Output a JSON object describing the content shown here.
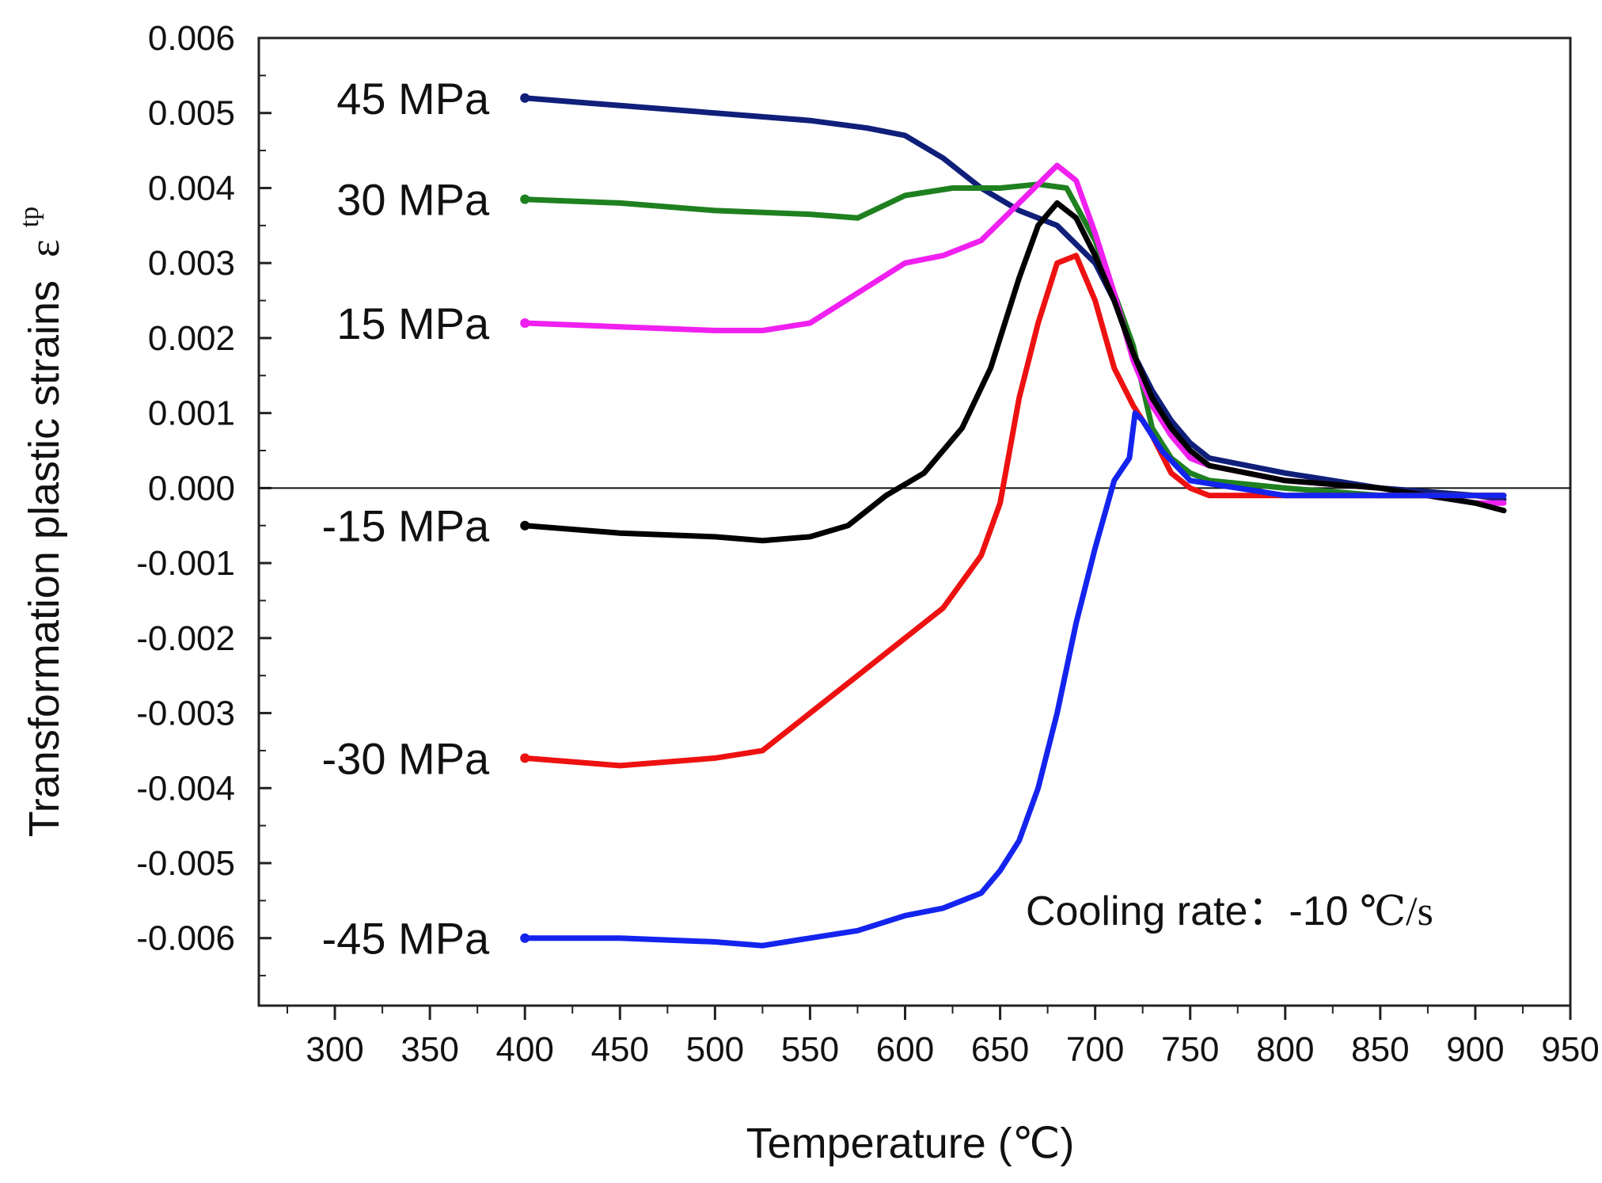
{
  "chart_data": {
    "type": "line",
    "xlabel": "Temperature (℃)",
    "ylabel": "Transformation plastic strains",
    "ylabel_symbol": "ε",
    "ylabel_superscript": "tp",
    "xlim": [
      260,
      950
    ],
    "ylim": [
      -0.0069,
      0.006
    ],
    "x_ticks": [
      300,
      350,
      400,
      450,
      500,
      550,
      600,
      650,
      700,
      750,
      800,
      850,
      900,
      950
    ],
    "x_tick_labels": [
      "300",
      "350",
      "400",
      "450",
      "500",
      "550",
      "600",
      "650",
      "700",
      "750",
      "800",
      "850",
      "900",
      "950"
    ],
    "y_ticks": [
      0.006,
      0.005,
      0.004,
      0.003,
      0.002,
      0.001,
      0.0,
      -0.001,
      -0.002,
      -0.003,
      -0.004,
      -0.005,
      -0.006
    ],
    "y_tick_labels": [
      "0.006",
      "0.005",
      "0.004",
      "0.003",
      "0.002",
      "0.001",
      "0.000",
      "-0.001",
      "-0.002",
      "-0.003",
      "-0.004",
      "-0.005",
      "-0.006"
    ],
    "zero_line": true,
    "grid": false,
    "annotation": {
      "text": "Cooling rate：-10 ",
      "unit": "℃/s"
    },
    "series": [
      {
        "name": "45 MPa",
        "color": "#0f1f7a",
        "x": [
          400,
          450,
          500,
          550,
          580,
          600,
          620,
          640,
          660,
          680,
          700,
          710,
          720,
          730,
          740,
          750,
          760,
          800,
          850,
          900,
          915
        ],
        "y": [
          0.0052,
          0.0051,
          0.005,
          0.0049,
          0.0048,
          0.0047,
          0.0044,
          0.004,
          0.0037,
          0.0035,
          0.003,
          0.0025,
          0.0018,
          0.0013,
          0.0009,
          0.0006,
          0.0004,
          0.0002,
          0.0,
          -0.0001,
          -0.00015
        ]
      },
      {
        "name": "30 MPa",
        "color": "#1f8020",
        "x": [
          400,
          450,
          500,
          550,
          575,
          600,
          625,
          650,
          670,
          685,
          700,
          710,
          720,
          730,
          740,
          750,
          760,
          800,
          850,
          900,
          915
        ],
        "y": [
          0.00385,
          0.0038,
          0.0037,
          0.00365,
          0.0036,
          0.0039,
          0.004,
          0.004,
          0.00405,
          0.004,
          0.0033,
          0.0026,
          0.0019,
          0.0008,
          0.0004,
          0.0002,
          0.0001,
          0.0,
          -0.0001,
          -0.0001,
          -0.0001
        ]
      },
      {
        "name": "15 MPa",
        "color": "#f020f0",
        "x": [
          400,
          450,
          500,
          525,
          550,
          575,
          600,
          620,
          640,
          660,
          680,
          690,
          700,
          710,
          720,
          730,
          740,
          750,
          760,
          800,
          850,
          900,
          915
        ],
        "y": [
          0.0022,
          0.00215,
          0.0021,
          0.0021,
          0.0022,
          0.0026,
          0.003,
          0.0031,
          0.0033,
          0.0038,
          0.0043,
          0.0041,
          0.0034,
          0.0026,
          0.0017,
          0.0011,
          0.0007,
          0.0004,
          0.0003,
          0.0001,
          0.0,
          -0.0002,
          -0.0002
        ]
      },
      {
        "name": "-15 MPa",
        "color": "#000000",
        "x": [
          400,
          450,
          500,
          525,
          550,
          570,
          590,
          610,
          630,
          645,
          660,
          670,
          680,
          690,
          700,
          710,
          720,
          730,
          740,
          750,
          760,
          800,
          850,
          900,
          915
        ],
        "y": [
          -0.0005,
          -0.0006,
          -0.00065,
          -0.0007,
          -0.00065,
          -0.0005,
          -0.0001,
          0.0002,
          0.0008,
          0.0016,
          0.0028,
          0.0035,
          0.0038,
          0.0036,
          0.0031,
          0.0025,
          0.0018,
          0.0012,
          0.0008,
          0.0005,
          0.0003,
          0.0001,
          0.0,
          -0.0002,
          -0.0003
        ]
      },
      {
        "name": "-30 MPa",
        "color": "#ee1111",
        "x": [
          400,
          450,
          500,
          525,
          550,
          575,
          600,
          620,
          640,
          650,
          660,
          670,
          680,
          690,
          700,
          710,
          720,
          730,
          740,
          750,
          760,
          800,
          850,
          900,
          915
        ],
        "y": [
          -0.0036,
          -0.0037,
          -0.0036,
          -0.0035,
          -0.003,
          -0.0025,
          -0.002,
          -0.0016,
          -0.0009,
          -0.0002,
          0.0012,
          0.0022,
          0.003,
          0.0031,
          0.0025,
          0.0016,
          0.0011,
          0.0007,
          0.0002,
          0.0,
          -0.0001,
          -0.0001,
          -0.0001,
          -0.0001,
          -0.0001
        ]
      },
      {
        "name": "-45 MPa",
        "color": "#1424ee",
        "x": [
          400,
          450,
          500,
          525,
          550,
          575,
          600,
          620,
          640,
          650,
          660,
          670,
          680,
          690,
          700,
          710,
          718,
          721,
          725,
          735,
          750,
          800,
          850,
          900,
          915
        ],
        "y": [
          -0.006,
          -0.006,
          -0.00605,
          -0.0061,
          -0.006,
          -0.0059,
          -0.0057,
          -0.0056,
          -0.0054,
          -0.0051,
          -0.0047,
          -0.004,
          -0.003,
          -0.0018,
          -0.0008,
          0.0001,
          0.0004,
          0.001,
          0.0009,
          0.0005,
          0.0001,
          -0.0001,
          -0.0001,
          -0.0001,
          -0.0001
        ]
      }
    ]
  }
}
